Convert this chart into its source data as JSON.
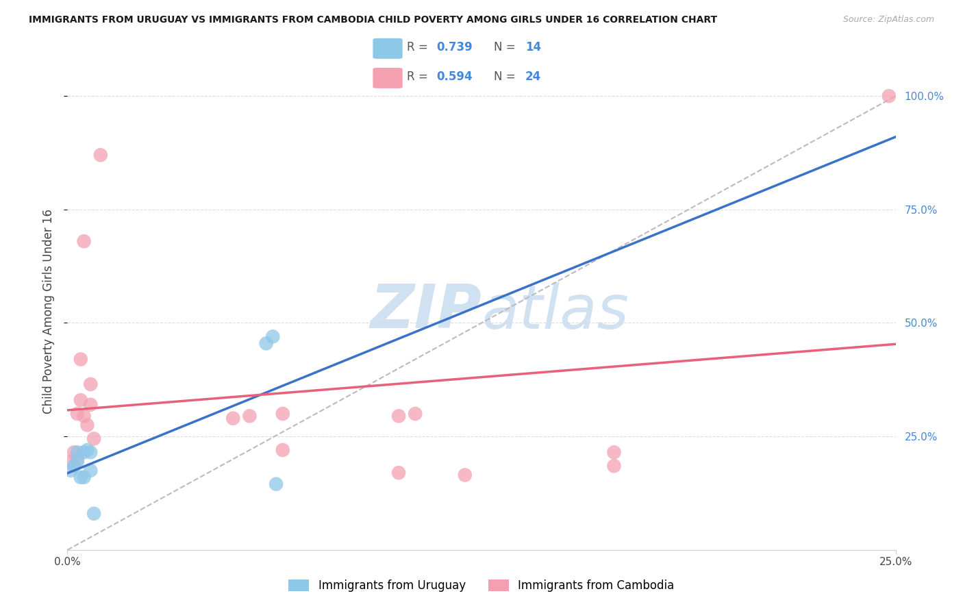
{
  "title": "IMMIGRANTS FROM URUGUAY VS IMMIGRANTS FROM CAMBODIA CHILD POVERTY AMONG GIRLS UNDER 16 CORRELATION CHART",
  "source": "Source: ZipAtlas.com",
  "ylabel": "Child Poverty Among Girls Under 16",
  "xlim": [
    0.0,
    0.25
  ],
  "ylim": [
    0.0,
    1.05
  ],
  "yticks": [
    0.25,
    0.5,
    0.75,
    1.0
  ],
  "xtick_positions": [
    0.0,
    0.25
  ],
  "xtick_labels": [
    "0.0%",
    "25.0%"
  ],
  "uruguay_R": "0.739",
  "uruguay_N": "14",
  "cambodia_R": "0.594",
  "cambodia_N": "24",
  "uruguay_scatter_color": "#8EC8E8",
  "cambodia_scatter_color": "#F4A0B0",
  "uruguay_line_color": "#3A72C8",
  "cambodia_line_color": "#E8607A",
  "diagonal_color": "#BBBBBB",
  "watermark_color": "#C8DCF0",
  "grid_color": "#DDDDDD",
  "right_tick_color": "#4488DD",
  "uruguay_x": [
    0.001,
    0.002,
    0.003,
    0.003,
    0.004,
    0.005,
    0.005,
    0.006,
    0.007,
    0.007,
    0.008,
    0.06,
    0.062,
    0.063
  ],
  "uruguay_y": [
    0.175,
    0.185,
    0.195,
    0.215,
    0.16,
    0.16,
    0.215,
    0.22,
    0.215,
    0.175,
    0.08,
    0.455,
    0.47,
    0.145
  ],
  "cambodia_x": [
    0.001,
    0.002,
    0.003,
    0.003,
    0.004,
    0.004,
    0.005,
    0.005,
    0.006,
    0.007,
    0.007,
    0.008,
    0.01,
    0.05,
    0.055,
    0.065,
    0.065,
    0.105,
    0.1,
    0.1,
    0.12,
    0.165,
    0.165,
    0.248
  ],
  "cambodia_y": [
    0.195,
    0.215,
    0.2,
    0.3,
    0.33,
    0.42,
    0.295,
    0.68,
    0.275,
    0.32,
    0.365,
    0.245,
    0.87,
    0.29,
    0.295,
    0.3,
    0.22,
    0.3,
    0.295,
    0.17,
    0.165,
    0.215,
    0.185,
    1.0
  ]
}
